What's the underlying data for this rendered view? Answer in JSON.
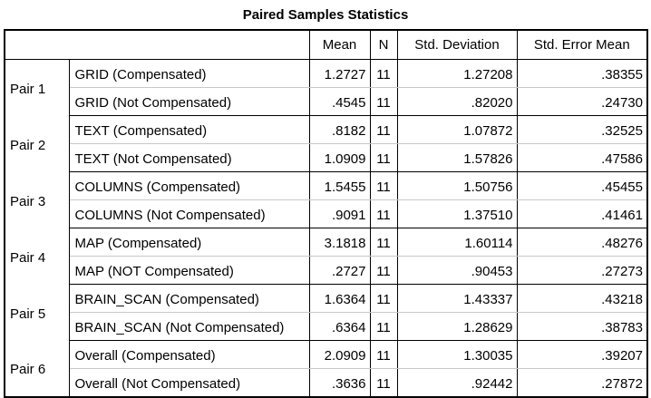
{
  "title": "Paired Samples Statistics",
  "headers": {
    "mean": "Mean",
    "n": "N",
    "std_deviation": "Std. Deviation",
    "std_error_mean": "Std. Error Mean"
  },
  "pairs": [
    {
      "pair": "Pair 1",
      "rows": [
        {
          "label": "GRID (Compensated)",
          "mean": "1.2727",
          "n": "11",
          "sd": "1.27208",
          "se": ".38355"
        },
        {
          "label": "GRID (Not Compensated)",
          "mean": ".4545",
          "n": "11",
          "sd": ".82020",
          "se": ".24730"
        }
      ]
    },
    {
      "pair": "Pair 2",
      "rows": [
        {
          "label": "TEXT (Compensated)",
          "mean": ".8182",
          "n": "11",
          "sd": "1.07872",
          "se": ".32525"
        },
        {
          "label": "TEXT (Not Compensated)",
          "mean": "1.0909",
          "n": "11",
          "sd": "1.57826",
          "se": ".47586"
        }
      ]
    },
    {
      "pair": "Pair 3",
      "rows": [
        {
          "label": "COLUMNS (Compensated)",
          "mean": "1.5455",
          "n": "11",
          "sd": "1.50756",
          "se": ".45455"
        },
        {
          "label": "COLUMNS (Not Compensated)",
          "mean": ".9091",
          "n": "11",
          "sd": "1.37510",
          "se": ".41461"
        }
      ]
    },
    {
      "pair": "Pair 4",
      "rows": [
        {
          "label": "MAP (Compensated)",
          "mean": "3.1818",
          "n": "11",
          "sd": "1.60114",
          "se": ".48276"
        },
        {
          "label": "MAP (NOT Compensated)",
          "mean": ".2727",
          "n": "11",
          "sd": ".90453",
          "se": ".27273"
        }
      ]
    },
    {
      "pair": "Pair 5",
      "rows": [
        {
          "label": "BRAIN_SCAN (Compensated)",
          "mean": "1.6364",
          "n": "11",
          "sd": "1.43337",
          "se": ".43218"
        },
        {
          "label": "BRAIN_SCAN (Not Compensated)",
          "mean": ".6364",
          "n": "11",
          "sd": "1.28629",
          "se": ".38783"
        }
      ]
    },
    {
      "pair": "Pair 6",
      "rows": [
        {
          "label": "Overall (Compensated)",
          "mean": "2.0909",
          "n": "11",
          "sd": "1.30035",
          "se": ".39207"
        },
        {
          "label": "Overall (Not Compensated)",
          "mean": ".3636",
          "n": "11",
          "sd": ".92442",
          "se": ".27872"
        }
      ]
    }
  ]
}
